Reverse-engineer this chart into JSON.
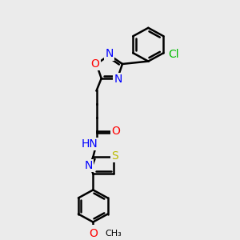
{
  "bg_color": "#ebebeb",
  "bond_color": "#000000",
  "bond_width": 1.8,
  "atom_colors": {
    "N": "#0000ff",
    "O": "#ff0000",
    "S": "#bbbb00",
    "Cl": "#00bb00",
    "C": "#000000",
    "H": "#000000"
  },
  "font_size": 10,
  "fig_size": [
    3.0,
    3.0
  ],
  "dpi": 100
}
